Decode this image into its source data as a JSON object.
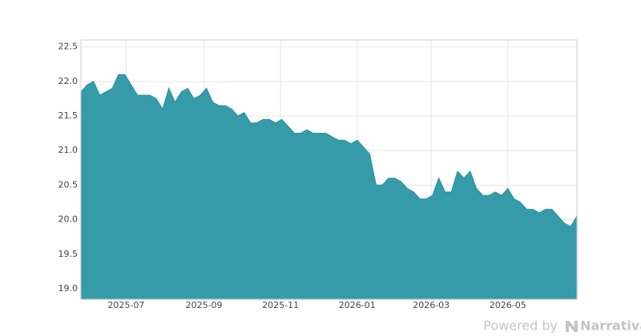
{
  "chart_data": {
    "type": "area",
    "values": [
      21.85,
      21.95,
      22.0,
      21.8,
      21.85,
      21.9,
      22.1,
      22.1,
      21.95,
      21.8,
      21.8,
      21.8,
      21.75,
      21.6,
      21.9,
      21.7,
      21.85,
      21.9,
      21.75,
      21.8,
      21.9,
      21.7,
      21.65,
      21.65,
      21.6,
      21.5,
      21.55,
      21.4,
      21.4,
      21.45,
      21.45,
      21.4,
      21.45,
      21.35,
      21.25,
      21.25,
      21.3,
      21.25,
      21.25,
      21.25,
      21.2,
      21.15,
      21.15,
      21.1,
      21.15,
      21.05,
      20.95,
      20.5,
      20.5,
      20.6,
      20.6,
      20.55,
      20.45,
      20.4,
      20.3,
      20.3,
      20.35,
      20.6,
      20.4,
      20.4,
      20.7,
      20.6,
      20.7,
      20.45,
      20.35,
      20.35,
      20.4,
      20.35,
      20.45,
      20.3,
      20.25,
      20.15,
      20.15,
      20.1,
      20.15,
      20.15,
      20.05,
      19.95,
      19.9,
      20.05
    ],
    "color": "#2b96a3",
    "xlim": [
      0,
      79
    ],
    "xticks": [
      {
        "value": 7.2,
        "label": "2025-07"
      },
      {
        "value": 19.6,
        "label": "2025-09"
      },
      {
        "value": 31.8,
        "label": "2025-11"
      },
      {
        "value": 44,
        "label": "2026-01"
      },
      {
        "value": 55.8,
        "label": "2026-03"
      },
      {
        "value": 68,
        "label": "2026-05"
      }
    ],
    "ylim": [
      18.85,
      22.6
    ],
    "yticks": [
      {
        "value": 19,
        "label": "19.0"
      },
      19.5,
      {
        "value": 20,
        "label": "20.0"
      },
      20.5,
      {
        "value": 21,
        "label": "21.0"
      },
      21.5,
      {
        "value": 22,
        "label": "22.0"
      },
      22.5
    ],
    "grid": true
  },
  "footer": {
    "prefix": "Powered by",
    "brand": "Narrativa"
  }
}
